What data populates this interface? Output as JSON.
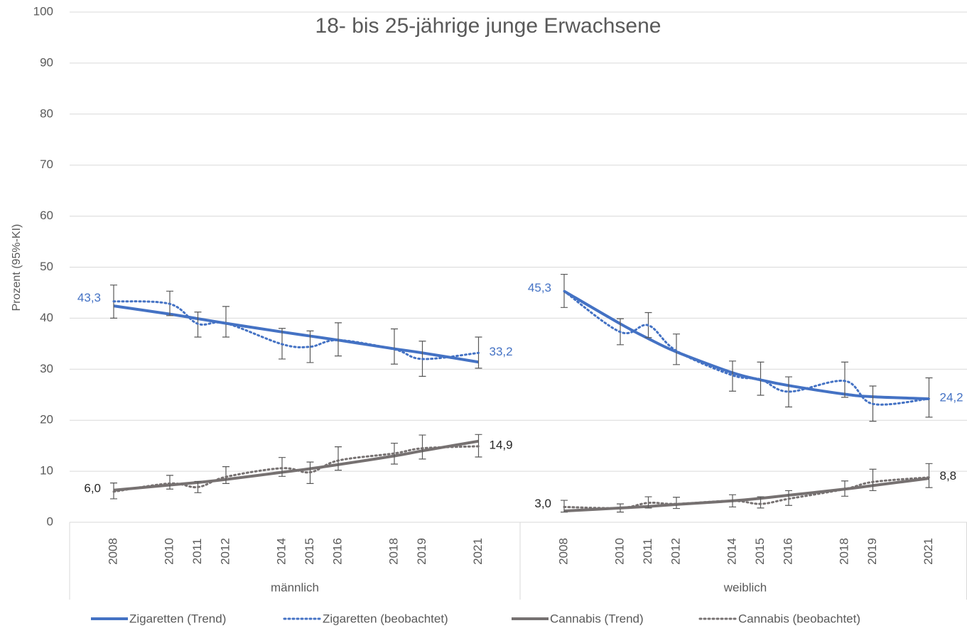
{
  "chart_data": {
    "type": "line",
    "title": "18- bis 25-jährige junge Erwachsene",
    "y_label": "Prozent (95%-KI)",
    "ylim": [
      0,
      100
    ],
    "yticks": [
      0,
      10,
      20,
      30,
      40,
      50,
      60,
      70,
      80,
      90,
      100
    ],
    "grid": true,
    "legend": "bottom",
    "x": [
      2008,
      2010,
      2011,
      2012,
      2014,
      2015,
      2016,
      2018,
      2019,
      2021
    ],
    "series": [
      {
        "name": "Zigaretten (Trend)",
        "color": "#4472c4",
        "style": "solid"
      },
      {
        "name": "Zigaretten (beobachtet)",
        "color": "#4472c4",
        "style": "dotted"
      },
      {
        "name": "Cannabis (Trend)",
        "color": "#767171",
        "style": "solid"
      },
      {
        "name": "Cannabis (beobachtet)",
        "color": "#767171",
        "style": "dotted"
      }
    ],
    "groups": [
      {
        "name": "männlich",
        "series": [
          {
            "values": [
              42.4,
              40.8,
              39.9,
              39.0,
              37.3,
              36.5,
              35.7,
              34.0,
              33.2,
              31.4
            ]
          },
          {
            "values": [
              43.3,
              42.8,
              38.9,
              39.0,
              34.9,
              34.4,
              35.7,
              33.9,
              32.0,
              33.2
            ],
            "ci_low": [
              40.0,
              40.5,
              36.3,
              36.3,
              32.0,
              31.3,
              32.6,
              31.0,
              28.6,
              30.2
            ],
            "ci_high": [
              46.5,
              45.3,
              41.2,
              42.3,
              38.0,
              37.5,
              39.1,
              37.9,
              35.5,
              36.3
            ],
            "value_labels": [
              "43,3",
              null,
              null,
              null,
              null,
              null,
              null,
              null,
              null,
              "33,2"
            ]
          },
          {
            "values": [
              6.3,
              7.3,
              7.8,
              8.4,
              9.8,
              10.5,
              11.3,
              13.0,
              14.0,
              15.9
            ]
          },
          {
            "values": [
              6.0,
              7.6,
              6.9,
              8.9,
              10.6,
              9.8,
              12.1,
              13.5,
              14.5,
              14.9
            ],
            "ci_low": [
              4.6,
              6.5,
              5.8,
              7.6,
              9.0,
              7.6,
              10.2,
              11.4,
              12.4,
              12.8
            ],
            "ci_high": [
              7.7,
              9.2,
              8.0,
              10.9,
              12.7,
              11.8,
              14.8,
              15.5,
              17.1,
              17.2
            ],
            "value_labels": [
              "6,0",
              null,
              null,
              null,
              null,
              null,
              null,
              null,
              null,
              "14,9"
            ]
          }
        ]
      },
      {
        "name": "weiblich",
        "series": [
          {
            "values": [
              45.3,
              38.9,
              36.0,
              33.4,
              29.3,
              27.9,
              26.8,
              25.1,
              24.6,
              24.2
            ]
          },
          {
            "values": [
              45.3,
              37.3,
              38.6,
              33.6,
              28.8,
              28.0,
              25.6,
              27.7,
              23.2,
              24.2
            ],
            "ci_low": [
              42.1,
              34.8,
              36.2,
              30.9,
              25.7,
              24.9,
              22.6,
              24.5,
              19.8,
              20.6
            ],
            "ci_high": [
              48.6,
              39.9,
              41.1,
              36.9,
              31.6,
              31.4,
              28.5,
              31.4,
              26.7,
              28.3
            ],
            "value_labels": [
              "45,3",
              null,
              null,
              null,
              null,
              null,
              null,
              null,
              null,
              "24,2"
            ]
          },
          {
            "values": [
              2.2,
              2.8,
              3.1,
              3.5,
              4.2,
              4.7,
              5.3,
              6.5,
              7.2,
              8.6
            ]
          },
          {
            "values": [
              3.0,
              2.8,
              3.8,
              3.6,
              4.2,
              3.6,
              4.6,
              6.5,
              7.9,
              8.8
            ],
            "ci_low": [
              2.0,
              2.0,
              2.8,
              2.7,
              3.0,
              2.8,
              3.3,
              5.1,
              6.2,
              6.8
            ],
            "ci_high": [
              4.3,
              3.6,
              5.0,
              4.9,
              5.4,
              5.0,
              6.2,
              8.1,
              10.4,
              11.5
            ],
            "value_labels": [
              "3,0",
              null,
              null,
              null,
              null,
              null,
              null,
              null,
              null,
              "8,8"
            ]
          }
        ]
      }
    ]
  }
}
